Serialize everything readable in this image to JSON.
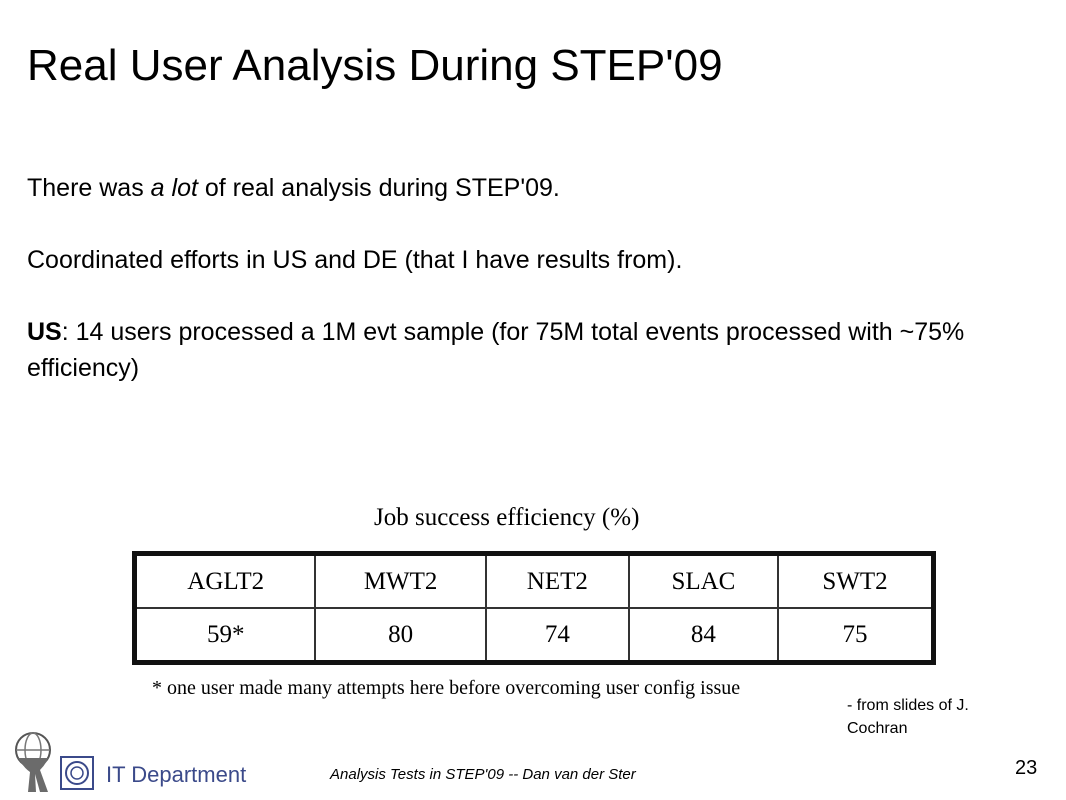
{
  "slide": {
    "title": "Real User Analysis During STEP'09",
    "line1": {
      "pre": "There was ",
      "em": "a lot",
      "post": " of real analysis during STEP'09."
    },
    "line2": "Coordinated efforts in US and DE (that I have results from).",
    "line3": {
      "strong": "US",
      "post": ": 14 users processed a 1M evt sample (for 75M total events processed with ~75% efficiency)"
    }
  },
  "figure": {
    "caption": "Job success efficiency (%)",
    "headers": [
      "AGLT2",
      "MWT2",
      "NET2",
      "SLAC",
      "SWT2"
    ],
    "values": [
      "59*",
      "80",
      "74",
      "84",
      "75"
    ],
    "footnote": "* one user made many attempts here before overcoming user config issue"
  },
  "credit": {
    "line1": "- from slides of  J.",
    "line2": "Cochran"
  },
  "footer": {
    "text": "Analysis Tests in STEP'09  -- Dan van der Ster",
    "page_number": "23",
    "department": "IT Department"
  }
}
